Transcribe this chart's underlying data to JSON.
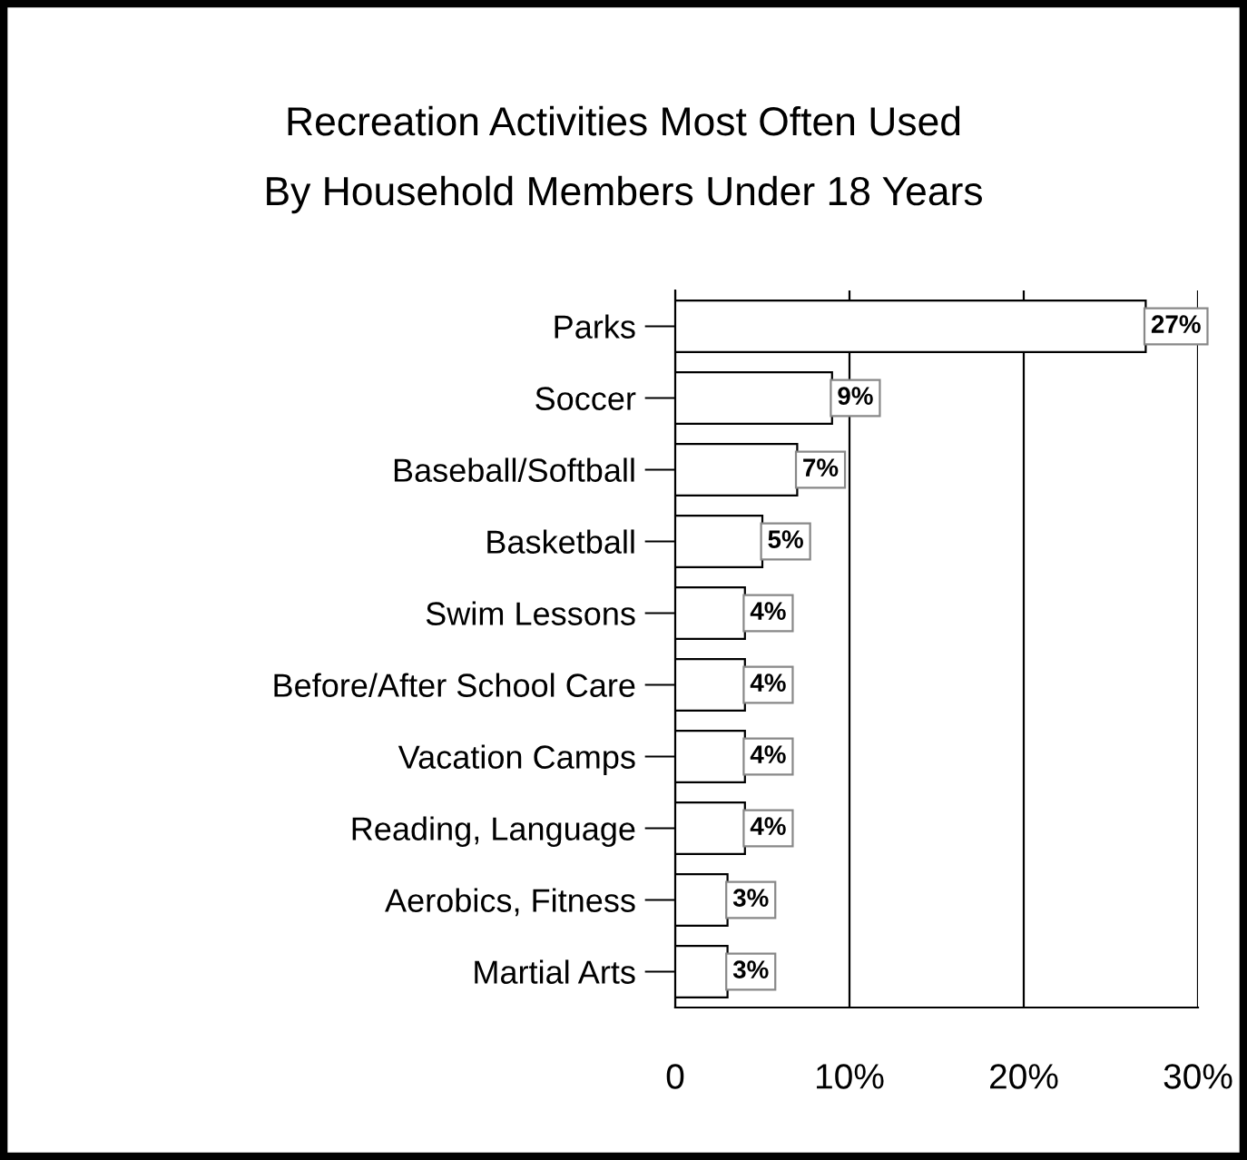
{
  "chart_data": {
    "type": "bar",
    "orientation": "horizontal",
    "title": "Recreation Activities Most Often Used\nBy Household Members Under 18 Years",
    "categories": [
      "Parks",
      "Soccer",
      "Baseball/Softball",
      "Basketball",
      "Swim Lessons",
      "Before/After School Care",
      "Vacation Camps",
      "Reading, Language",
      "Aerobics, Fitness",
      "Martial Arts"
    ],
    "values": [
      27,
      9,
      7,
      5,
      4,
      4,
      4,
      4,
      3,
      3
    ],
    "color": "#ffffff",
    "xlim": [
      0,
      30
    ],
    "xticks": [
      0,
      {
        "value": 10,
        "label": "10%"
      },
      {
        "value": 20,
        "label": "20%"
      },
      {
        "value": 30,
        "label": "30%"
      }
    ],
    "grid": "x",
    "value_labels": [
      "27%",
      "9%",
      "7%",
      "5%",
      "4%",
      "4%",
      "4%",
      "4%",
      "3%",
      "3%"
    ]
  }
}
